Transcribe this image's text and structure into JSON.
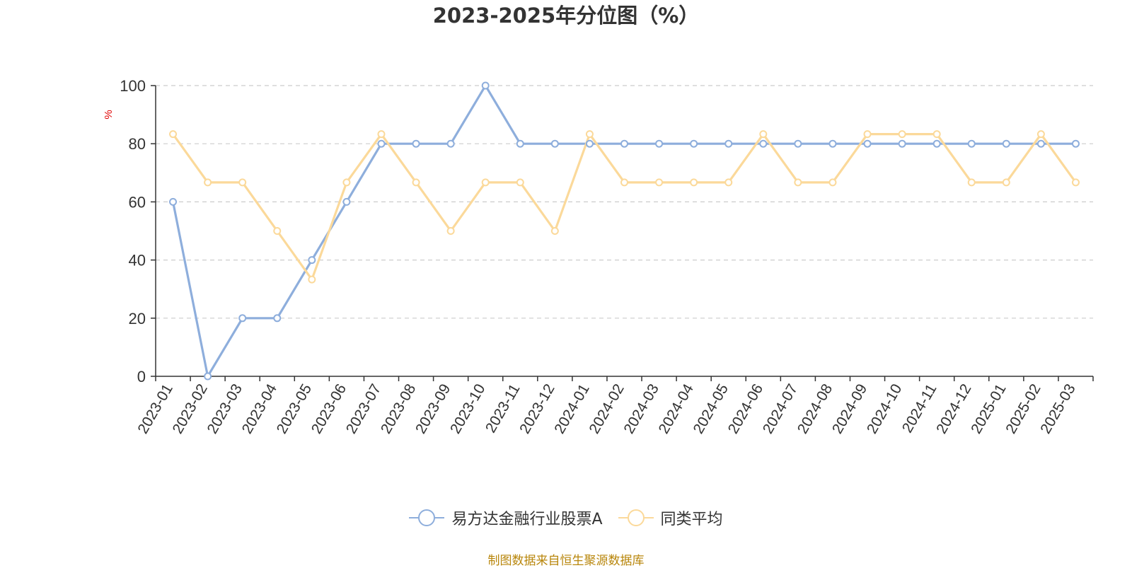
{
  "chart_data": {
    "type": "line",
    "title": "2023-2025年分位图（%）",
    "ylabel": "%",
    "xlabel": "",
    "ylim": [
      0,
      100
    ],
    "yticks": [
      0,
      20,
      40,
      60,
      80,
      100
    ],
    "grid": true,
    "legend_position": "bottom",
    "categories": [
      "2023-01",
      "2023-02",
      "2023-03",
      "2023-04",
      "2023-05",
      "2023-06",
      "2023-07",
      "2023-08",
      "2023-09",
      "2023-10",
      "2023-11",
      "2023-12",
      "2024-01",
      "2024-02",
      "2024-03",
      "2024-04",
      "2024-05",
      "2024-06",
      "2024-07",
      "2024-08",
      "2024-09",
      "2024-10",
      "2024-11",
      "2024-12",
      "2025-01",
      "2025-02",
      "2025-03"
    ],
    "series": [
      {
        "name": "易方达金融行业股票A",
        "color": "#8eaedc",
        "values": [
          60,
          0,
          20,
          20,
          40,
          60,
          80,
          80,
          80,
          100,
          80,
          80,
          80,
          80,
          80,
          80,
          80,
          80,
          80,
          80,
          80,
          80,
          80,
          80,
          80,
          80,
          80
        ]
      },
      {
        "name": "同类平均",
        "color": "#fbd99a",
        "values": [
          83.3,
          66.7,
          66.7,
          50,
          33.3,
          66.7,
          83.3,
          66.7,
          50,
          66.7,
          66.7,
          50,
          83.3,
          66.7,
          66.7,
          66.7,
          66.7,
          83.3,
          66.7,
          66.7,
          83.3,
          83.3,
          83.3,
          66.7,
          66.7,
          83.3,
          66.7
        ]
      }
    ],
    "source_note": "制图数据来自恒生聚源数据库"
  }
}
